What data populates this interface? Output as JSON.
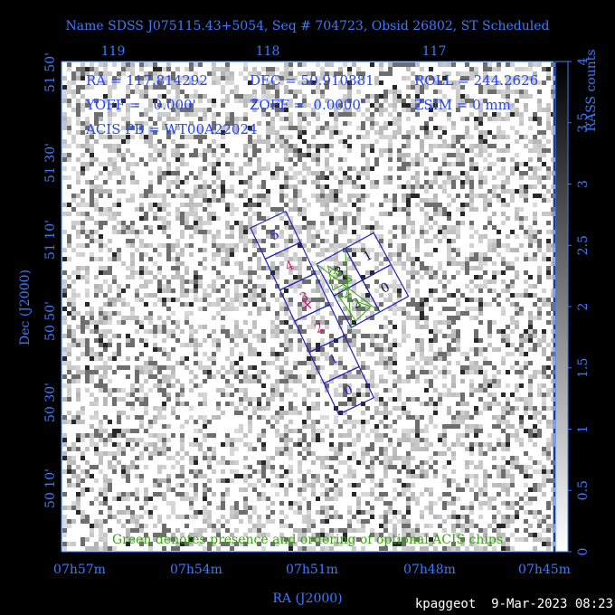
{
  "title": "Name SDSS J075115.43+5054, Seq # 704723, Obsid 26802, ST Scheduled",
  "info": {
    "ra": "RA = 117.814292",
    "dec": "DEC = 50.910881",
    "roll": "ROLL = 244.2626",
    "yoff": "YOFF =   0.000'",
    "zoff": "ZOFF =  0.0000'",
    "zsim": "ZSIM = 0 mm",
    "acis": "ACIS PB = WT00A22024"
  },
  "top_axis": [
    "119",
    "118",
    "117"
  ],
  "left_axis": [
    "51 50'",
    "51 30'",
    "51 10'",
    "50 50'",
    "50 30'",
    "50 10'"
  ],
  "bottom_axis": [
    "07h57m",
    "07h54m",
    "07h51m",
    "07h48m",
    "07h45m"
  ],
  "x_label": "RA (J2000)",
  "y_label": "Dec (J2000)",
  "colorbar": {
    "label": "RASS counts",
    "ticks": [
      "0",
      "0.5",
      "1",
      "1.5",
      "2",
      "2.5",
      "3",
      "3.5",
      "4"
    ]
  },
  "acis_s_chips": [
    "5",
    "4",
    "3",
    "2",
    "1",
    "0"
  ],
  "acis_i_chips": [
    "3",
    "1",
    "2",
    "0"
  ],
  "optional_chips": [
    "3",
    "2",
    "1"
  ],
  "note": "Green denotes presence and ordering of optional ACIS chips",
  "footer": "kpaggeot  9-Mar-2023 08:23"
}
